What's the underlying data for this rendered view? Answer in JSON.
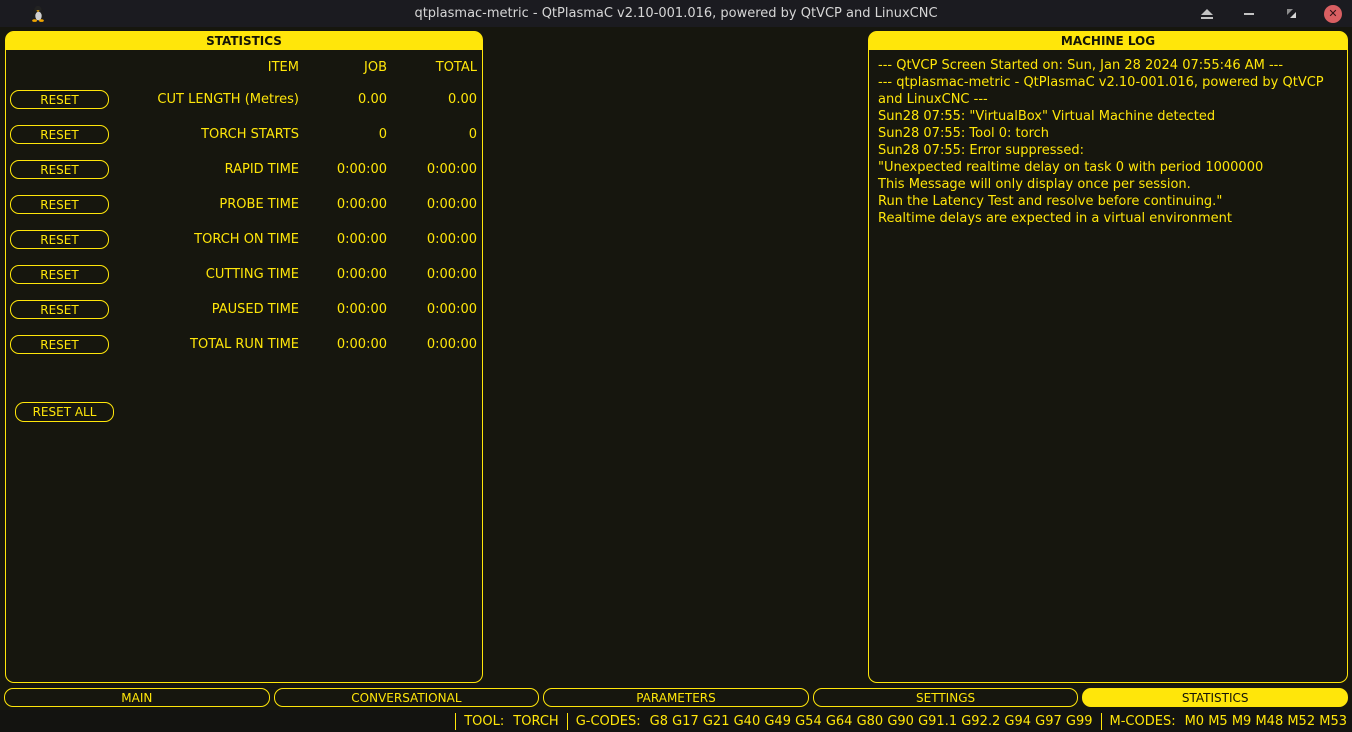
{
  "colors": {
    "accent_yellow": "#ffe60a",
    "panel_background": "#16160e",
    "titlebar_background": "#1b1b20",
    "close_button_red": "#d95f62"
  },
  "window": {
    "title": "qtplasmac-metric - QtPlasmaC v2.10-001.016, powered by QtVCP and LinuxCNC"
  },
  "statistics_panel": {
    "title": "STATISTICS",
    "columns": {
      "item": "ITEM",
      "job": "JOB",
      "total": "TOTAL"
    },
    "reset_label": "RESET",
    "reset_all_label": "RESET ALL",
    "rows": [
      {
        "item": "CUT LENGTH (Metres)",
        "job": "0.00",
        "total": "0.00"
      },
      {
        "item": "TORCH STARTS",
        "job": "0",
        "total": "0"
      },
      {
        "item": "RAPID TIME",
        "job": "0:00:00",
        "total": "0:00:00"
      },
      {
        "item": "PROBE TIME",
        "job": "0:00:00",
        "total": "0:00:00"
      },
      {
        "item": "TORCH ON TIME",
        "job": "0:00:00",
        "total": "0:00:00"
      },
      {
        "item": "CUTTING TIME",
        "job": "0:00:00",
        "total": "0:00:00"
      },
      {
        "item": "PAUSED TIME",
        "job": "0:00:00",
        "total": "0:00:00"
      },
      {
        "item": "TOTAL RUN TIME",
        "job": "0:00:00",
        "total": "0:00:00"
      }
    ]
  },
  "machine_log": {
    "title": "MACHINE LOG",
    "lines": [
      "--- QtVCP Screen Started on: Sun, Jan 28 2024 07:55:46 AM ---",
      "--- qtplasmac-metric - QtPlasmaC v2.10-001.016, powered by QtVCP and LinuxCNC ---",
      "Sun28 07:55: \"VirtualBox\" Virtual Machine detected",
      "Sun28 07:55: Tool 0: torch",
      "Sun28 07:55: Error suppressed:",
      "\"Unexpected realtime delay on task 0 with period 1000000",
      "This Message will only display once per session.",
      "Run the Latency Test and resolve before continuing.\"",
      "Realtime delays are expected in a virtual environment"
    ]
  },
  "tabs": [
    {
      "label": "MAIN",
      "active": false
    },
    {
      "label": "CONVERSATIONAL",
      "active": false
    },
    {
      "label": "PARAMETERS",
      "active": false
    },
    {
      "label": "SETTINGS",
      "active": false
    },
    {
      "label": "STATISTICS",
      "active": true
    }
  ],
  "status_bar": {
    "tool_label": "TOOL:",
    "tool_value": "TORCH",
    "gcodes_label": "G-CODES:",
    "gcodes_value": "G8 G17 G21 G40 G49 G54 G64 G80 G90 G91.1 G92.2 G94 G97 G99",
    "mcodes_label": "M-CODES:",
    "mcodes_value": "M0 M5 M9 M48 M52 M53"
  }
}
